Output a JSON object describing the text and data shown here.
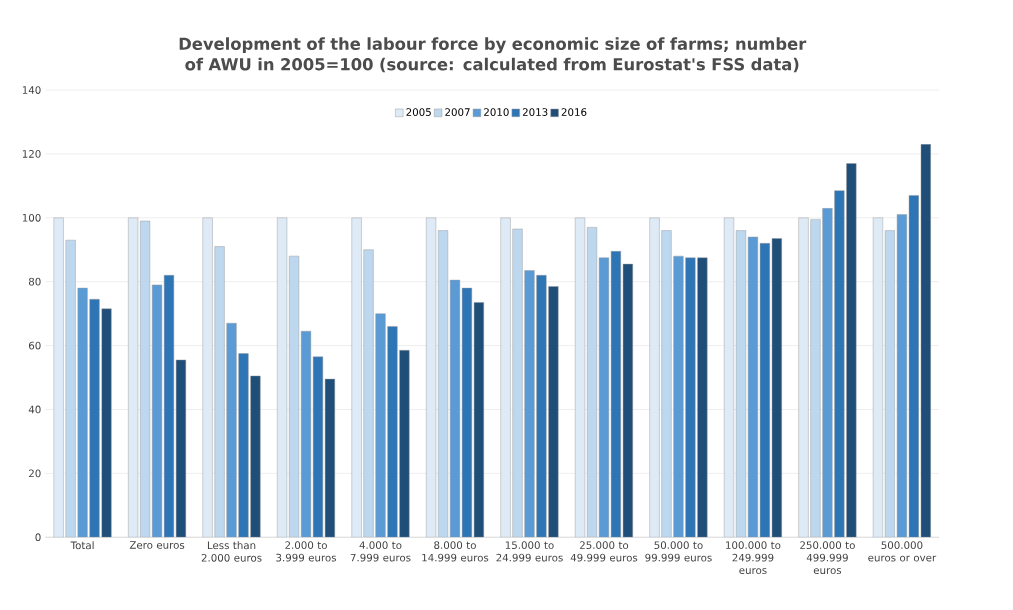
{
  "chart_data": {
    "type": "bar",
    "title": "Development of the labour force by economic size of farms; number of AWU in 2005=100 (source: calculated from Eurostat's FSS data)",
    "categories": [
      "Total",
      "Zero euros",
      "Less than 2.000 euros",
      "2.000 to 3.999 euros",
      "4.000 to 7.999 euros",
      "8.000 to 14.999 euros",
      "15.000 to 24.999 euros",
      "25.000 to 49.999 euros",
      "50.000 to 99.999 euros",
      "100.000 to 249.999 euros",
      "250.000 to 499.999 euros",
      "500.000 euros or over"
    ],
    "series": [
      {
        "name": "2005",
        "color": "#deebf7",
        "values": [
          100,
          100,
          100,
          100,
          100,
          100,
          100,
          100,
          100,
          100,
          100,
          100
        ]
      },
      {
        "name": "2007",
        "color": "#bdd7ee",
        "values": [
          93,
          99,
          91,
          88,
          90,
          96,
          96.5,
          97,
          96,
          96,
          99.5,
          96
        ]
      },
      {
        "name": "2010",
        "color": "#5b9bd5",
        "values": [
          78,
          79,
          67,
          64.5,
          70,
          80.5,
          83.5,
          87.5,
          88,
          94,
          103,
          101
        ]
      },
      {
        "name": "2013",
        "color": "#2e75b6",
        "values": [
          74.5,
          82,
          57.5,
          56.5,
          66,
          78,
          82,
          89.5,
          87.5,
          92,
          108.5,
          107
        ]
      },
      {
        "name": "2016",
        "color": "#1f4e79",
        "values": [
          71.5,
          55.5,
          50.5,
          49.5,
          58.5,
          73.5,
          78.5,
          85.5,
          87.5,
          93.5,
          117,
          123
        ]
      }
    ],
    "ylim": [
      0,
      140
    ],
    "yticks": [
      0,
      20,
      40,
      60,
      80,
      100,
      120,
      140
    ],
    "grid": "y",
    "legend": "top"
  }
}
